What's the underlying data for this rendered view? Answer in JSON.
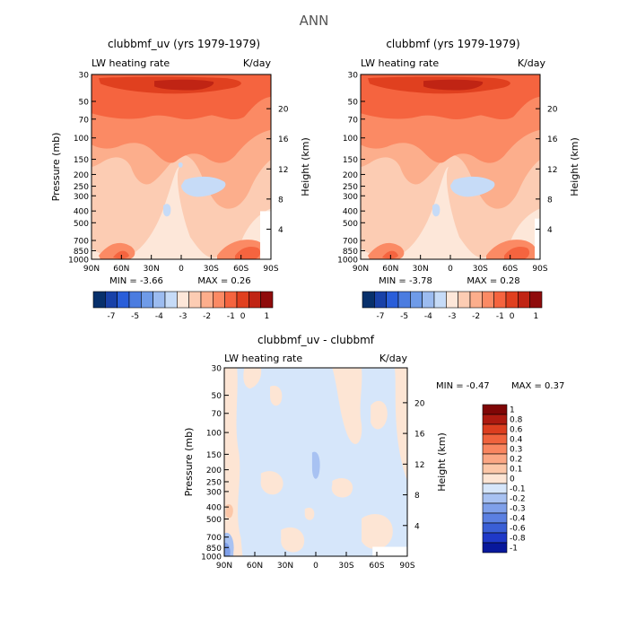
{
  "page_title": "ANN",
  "palettes": {
    "main": [
      "#08306b",
      "#1941a8",
      "#2a5ed9",
      "#4b7ce0",
      "#6f9be8",
      "#9cbcf0",
      "#c6dbf7",
      "#fde7d9",
      "#fcccb3",
      "#fcae8c",
      "#fb8a64",
      "#f5643f",
      "#e0401f",
      "#c02414",
      "#8f0b0b"
    ],
    "diff": [
      "#08189c",
      "#1f39c8",
      "#3a5fd6",
      "#5b80e2",
      "#7fa0ea",
      "#a8c2f2",
      "#d6e6fa",
      "#fde5d4",
      "#fcc7a8",
      "#fba784",
      "#f98660",
      "#f0633d",
      "#dc3e1f",
      "#ad1a10",
      "#7f0606"
    ]
  },
  "chart_data": [
    {
      "id": "panel-1",
      "type": "heatmap",
      "title": "clubbmf_uv (yrs 1979-1979)",
      "left_label": "LW heating rate",
      "right_label": "K/day",
      "xlabel": "",
      "ylabel": "Pressure (mb)",
      "ylabel_right": "Height (km)",
      "x_ticks": [
        "90N",
        "60N",
        "30N",
        "0",
        "30S",
        "60S",
        "90S"
      ],
      "y_ticks": [
        "30",
        "50",
        "70",
        "100",
        "150",
        "200",
        "250",
        "300",
        "400",
        "500",
        "700",
        "850",
        "1000"
      ],
      "y_ticks_values": [
        30,
        50,
        70,
        100,
        150,
        200,
        250,
        300,
        400,
        500,
        700,
        850,
        1000
      ],
      "ylim": [
        30,
        1000
      ],
      "height_ticks": [
        "20",
        "16",
        "12",
        "8",
        "4"
      ],
      "height_ticks_values": [
        20,
        16,
        12,
        8,
        4
      ],
      "min_text": "MIN = -3.66",
      "max_text": "MAX = 0.26",
      "min": -3.66,
      "max": 0.26,
      "colorbar_labels": [
        "-7",
        "-5",
        "-4",
        "-3",
        "-2",
        "-1",
        "0",
        "1"
      ],
      "colorbar_levels": [
        -7,
        -6,
        -5,
        -4.5,
        -4,
        -3.5,
        -3,
        -2.5,
        -2,
        -1.5,
        -1,
        -0.5,
        0,
        0.5,
        1
      ]
    },
    {
      "id": "panel-2",
      "type": "heatmap",
      "title": "clubbmf (yrs 1979-1979)",
      "left_label": "LW heating rate",
      "right_label": "K/day",
      "xlabel": "",
      "ylabel": "Pressure (mb)",
      "ylabel_right": "Height (km)",
      "x_ticks": [
        "90N",
        "60N",
        "30N",
        "0",
        "30S",
        "60S",
        "90S"
      ],
      "y_ticks": [
        "30",
        "50",
        "70",
        "100",
        "150",
        "200",
        "250",
        "300",
        "400",
        "500",
        "700",
        "850",
        "1000"
      ],
      "y_ticks_values": [
        30,
        50,
        70,
        100,
        150,
        200,
        250,
        300,
        400,
        500,
        700,
        850,
        1000
      ],
      "ylim": [
        30,
        1000
      ],
      "height_ticks": [
        "20",
        "16",
        "12",
        "8",
        "4"
      ],
      "height_ticks_values": [
        20,
        16,
        12,
        8,
        4
      ],
      "min_text": "MIN = -3.78",
      "max_text": "MAX = 0.28",
      "min": -3.78,
      "max": 0.28,
      "colorbar_labels": [
        "-7",
        "-5",
        "-4",
        "-3",
        "-2",
        "-1",
        "0",
        "1"
      ],
      "colorbar_levels": [
        -7,
        -6,
        -5,
        -4.5,
        -4,
        -3.5,
        -3,
        -2.5,
        -2,
        -1.5,
        -1,
        -0.5,
        0,
        0.5,
        1
      ]
    },
    {
      "id": "panel-diff",
      "type": "heatmap",
      "title": "clubbmf_uv - clubbmf",
      "left_label": "LW heating rate",
      "right_label": "K/day",
      "xlabel": "",
      "ylabel": "Pressure (mb)",
      "ylabel_right": "Height (km)",
      "x_ticks": [
        "90N",
        "60N",
        "30N",
        "0",
        "30S",
        "60S",
        "90S"
      ],
      "y_ticks": [
        "30",
        "50",
        "70",
        "100",
        "150",
        "200",
        "250",
        "300",
        "400",
        "500",
        "700",
        "850",
        "1000"
      ],
      "y_ticks_values": [
        30,
        50,
        70,
        100,
        150,
        200,
        250,
        300,
        400,
        500,
        700,
        850,
        1000
      ],
      "ylim": [
        30,
        1000
      ],
      "height_ticks": [
        "20",
        "16",
        "12",
        "8",
        "4"
      ],
      "height_ticks_values": [
        20,
        16,
        12,
        8,
        4
      ],
      "min_text": "MIN = -0.47",
      "max_text": "MAX = 0.37",
      "min": -0.47,
      "max": 0.37,
      "colorbar_labels": [
        "1",
        "0.8",
        "0.6",
        "0.4",
        "0.3",
        "0.2",
        "0.1",
        "0",
        "-0.1",
        "-0.2",
        "-0.3",
        "-0.4",
        "-0.6",
        "-0.8",
        "-1"
      ],
      "colorbar_levels": [
        1,
        0.8,
        0.6,
        0.4,
        0.3,
        0.2,
        0.1,
        0,
        -0.1,
        -0.2,
        -0.3,
        -0.4,
        -0.6,
        -0.8,
        -1
      ]
    }
  ]
}
